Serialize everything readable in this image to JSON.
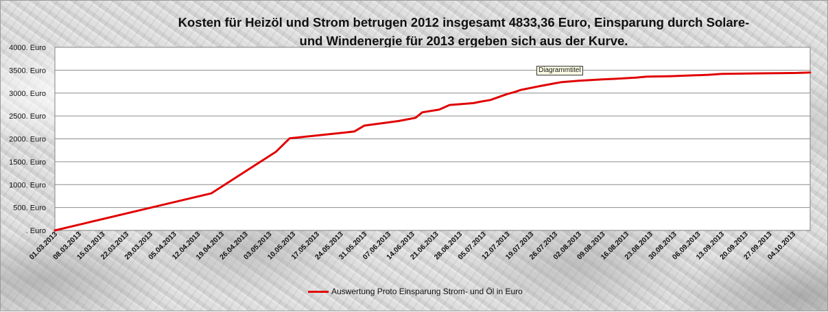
{
  "chart_data": {
    "type": "line",
    "title": "Kosten für Heizöl und Strom betrugen 2012 insgesamt 4833,36 Euro, Einsparung durch Solare-\nund Windenergie für 2013 ergeben sich aus der Kurve.",
    "xlabel": "",
    "ylabel": "",
    "ylim": [
      0,
      4000
    ],
    "y_ticks": [
      0,
      500,
      1000,
      1500,
      2000,
      2500,
      3000,
      3500,
      4000
    ],
    "y_tick_labels": [
      ". Euro",
      "500. Euro",
      "1000. Euro",
      "1500. Euro",
      "2000. Euro",
      "2500. Euro",
      "3000. Euro",
      "3500. Euro",
      "4000. Euro"
    ],
    "x_range": [
      "01.03.2013",
      "09.10.2013"
    ],
    "x_tick_labels": [
      "01.03.2013",
      "08.03.2013",
      "15.03.2013",
      "22.03.2013",
      "29.03.2013",
      "05.04.2013",
      "12.04.2013",
      "19.04.2013",
      "26.04.2013",
      "03.05.2013",
      "10.05.2013",
      "17.05.2013",
      "24.05.2013",
      "31.05.2013",
      "07.06.2013",
      "14.06.2013",
      "21.06.2013",
      "28.06.2013",
      "05.07.2013",
      "12.07.2013",
      "19.07.2013",
      "26.07.2013",
      "02.08.2013",
      "09.08.2013",
      "16.08.2013",
      "23.08.2013",
      "30.08.2013",
      "06.09.2013",
      "13.09.2013",
      "20.09.2013",
      "27.09.2013",
      "04.10.2013"
    ],
    "grid": true,
    "legend_position": "bottom",
    "series": [
      {
        "name": "Auswertung Proto Einsparung Strom- und Öl in Euro",
        "color": "#e00000",
        "points": [
          {
            "x": "01.03.2013",
            "y": 0
          },
          {
            "x": "16.04.2013",
            "y": 810
          },
          {
            "x": "05.05.2013",
            "y": 1720
          },
          {
            "x": "09.05.2013",
            "y": 2010
          },
          {
            "x": "28.05.2013",
            "y": 2160
          },
          {
            "x": "31.05.2013",
            "y": 2290
          },
          {
            "x": "10.06.2013",
            "y": 2390
          },
          {
            "x": "15.06.2013",
            "y": 2460
          },
          {
            "x": "17.06.2013",
            "y": 2580
          },
          {
            "x": "22.06.2013",
            "y": 2640
          },
          {
            "x": "25.06.2013",
            "y": 2740
          },
          {
            "x": "02.07.2013",
            "y": 2780
          },
          {
            "x": "04.07.2013",
            "y": 2810
          },
          {
            "x": "07.07.2013",
            "y": 2850
          },
          {
            "x": "12.07.2013",
            "y": 2980
          },
          {
            "x": "14.07.2013",
            "y": 3020
          },
          {
            "x": "16.07.2013",
            "y": 3070
          },
          {
            "x": "22.07.2013",
            "y": 3160
          },
          {
            "x": "25.07.2013",
            "y": 3200
          },
          {
            "x": "28.07.2013",
            "y": 3240
          },
          {
            "x": "02.08.2013",
            "y": 3270
          },
          {
            "x": "09.08.2013",
            "y": 3300
          },
          {
            "x": "12.08.2013",
            "y": 3310
          },
          {
            "x": "19.08.2013",
            "y": 3340
          },
          {
            "x": "22.08.2013",
            "y": 3360
          },
          {
            "x": "29.08.2013",
            "y": 3370
          },
          {
            "x": "02.09.2013",
            "y": 3380
          },
          {
            "x": "09.09.2013",
            "y": 3400
          },
          {
            "x": "13.09.2013",
            "y": 3420
          },
          {
            "x": "24.09.2013",
            "y": 3430
          },
          {
            "x": "05.10.2013",
            "y": 3440
          },
          {
            "x": "09.10.2013",
            "y": 3450
          }
        ]
      }
    ]
  },
  "tooltip": "Diagrammtitel"
}
